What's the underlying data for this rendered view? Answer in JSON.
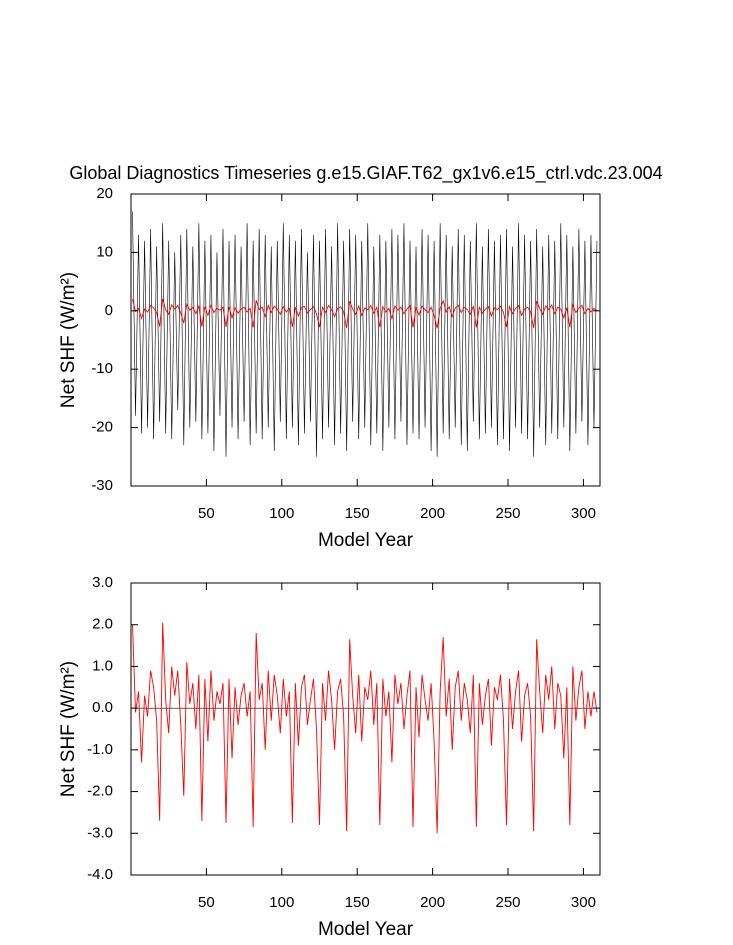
{
  "chart_data": [
    {
      "type": "line",
      "title": "Global Diagnostics Timeseries g.e15.GIAF.T62_gx1v6.e15_ctrl.vdc.23.004",
      "x_label": "Model Year",
      "y_label": "Net SHF (W/m²)",
      "xlim": [
        0,
        311
      ],
      "xticks": [
        50,
        100,
        150,
        200,
        250,
        300
      ],
      "ylim": [
        -30,
        20
      ],
      "yticks": [
        -30,
        -20,
        -10,
        0,
        10,
        20
      ],
      "series": [
        {
          "color": "#000000",
          "x": [
            1,
            3,
            5,
            7,
            9,
            11,
            13,
            15,
            17,
            19,
            21,
            23,
            25,
            27,
            29,
            31,
            33,
            35,
            37,
            39,
            41,
            43,
            45,
            47,
            49,
            51,
            53,
            55,
            57,
            59,
            61,
            63,
            65,
            67,
            69,
            71,
            73,
            75,
            77,
            79,
            81,
            83,
            85,
            87,
            89,
            91,
            93,
            95,
            97,
            99,
            101,
            103,
            105,
            107,
            109,
            111,
            113,
            115,
            117,
            119,
            121,
            123,
            125,
            127,
            129,
            131,
            133,
            135,
            137,
            139,
            141,
            143,
            145,
            147,
            149,
            151,
            153,
            155,
            157,
            159,
            161,
            163,
            165,
            167,
            169,
            171,
            173,
            175,
            177,
            179,
            181,
            183,
            185,
            187,
            189,
            191,
            193,
            195,
            197,
            199,
            201,
            203,
            205,
            207,
            209,
            211,
            213,
            215,
            217,
            219,
            221,
            223,
            225,
            227,
            229,
            231,
            233,
            235,
            237,
            239,
            241,
            243,
            245,
            247,
            249,
            251,
            253,
            255,
            257,
            259,
            261,
            263,
            265,
            267,
            269,
            271,
            273,
            275,
            277,
            279,
            281,
            283,
            285,
            287,
            289,
            291,
            293,
            295,
            297,
            299,
            301,
            303,
            305,
            307,
            309
          ],
          "values": [
            17,
            -18,
            13,
            -21,
            12,
            -20,
            14,
            -22,
            11,
            -19,
            15,
            -21,
            12,
            -22,
            10,
            -17,
            13,
            -23,
            14,
            -20,
            11,
            -19,
            15,
            -22,
            12,
            -21,
            13,
            -24,
            10,
            -18,
            14,
            -25,
            12,
            -20,
            13,
            -22,
            11,
            -19,
            15,
            -23,
            12,
            -21,
            14,
            -22,
            13,
            -20,
            11,
            -24,
            12,
            -19,
            15,
            -22,
            13,
            -20,
            12,
            -23,
            14,
            -21,
            10,
            -19,
            13,
            -25,
            12,
            -22,
            14,
            -20,
            11,
            -23,
            15,
            -21,
            12,
            -24,
            14,
            -19,
            13,
            -22,
            12,
            -20,
            15,
            -23,
            11,
            -21,
            13,
            -24,
            12,
            -20,
            14,
            -22,
            13,
            -19,
            15,
            -23,
            12,
            -21,
            11,
            -22,
            14,
            -20,
            13,
            -24,
            12,
            -25,
            15,
            -21,
            13,
            -22,
            11,
            -20,
            14,
            -23,
            13,
            -24,
            12,
            -19,
            15,
            -22,
            11,
            -21,
            14,
            -20,
            12,
            -23,
            13,
            -22,
            14,
            -24,
            11,
            -20,
            15,
            -21,
            13,
            -22,
            12,
            -25,
            14,
            -20,
            11,
            -23,
            13,
            -21,
            12,
            -22,
            15,
            -20,
            13,
            -24,
            11,
            -21,
            14,
            -19,
            12,
            -23,
            13,
            -20,
            12
          ]
        },
        {
          "color": "#ff0000",
          "x": [
            1,
            3,
            5,
            7,
            9,
            11,
            13,
            15,
            17,
            19,
            21,
            23,
            25,
            27,
            29,
            31,
            33,
            35,
            37,
            39,
            41,
            43,
            45,
            47,
            49,
            51,
            53,
            55,
            57,
            59,
            61,
            63,
            65,
            67,
            69,
            71,
            73,
            75,
            77,
            79,
            81,
            83,
            85,
            87,
            89,
            91,
            93,
            95,
            97,
            99,
            101,
            103,
            105,
            107,
            109,
            111,
            113,
            115,
            117,
            119,
            121,
            123,
            125,
            127,
            129,
            131,
            133,
            135,
            137,
            139,
            141,
            143,
            145,
            147,
            149,
            151,
            153,
            155,
            157,
            159,
            161,
            163,
            165,
            167,
            169,
            171,
            173,
            175,
            177,
            179,
            181,
            183,
            185,
            187,
            189,
            191,
            193,
            195,
            197,
            199,
            201,
            203,
            205,
            207,
            209,
            211,
            213,
            215,
            217,
            219,
            221,
            223,
            225,
            227,
            229,
            231,
            233,
            235,
            237,
            239,
            241,
            243,
            245,
            247,
            249,
            251,
            253,
            255,
            257,
            259,
            261,
            263,
            265,
            267,
            269,
            271,
            273,
            275,
            277,
            279,
            281,
            283,
            285,
            287,
            289,
            291,
            293,
            295,
            297,
            299,
            301,
            303,
            305,
            307,
            309
          ],
          "values": [
            2.0,
            -0.1,
            0.4,
            -1.3,
            0.3,
            -0.2,
            0.9,
            0.5,
            -0.3,
            -2.7,
            2.05,
            0.2,
            -0.6,
            1.0,
            0.3,
            0.9,
            -0.4,
            -2.1,
            1.1,
            0.1,
            0.6,
            -0.5,
            0.8,
            -2.7,
            0.7,
            -0.8,
            0.9,
            -0.3,
            0.4,
            0.1,
            0.6,
            -2.75,
            0.7,
            -1.2,
            0.5,
            -0.4,
            0.3,
            0.6,
            -0.2,
            0.4,
            -2.85,
            1.8,
            0.2,
            0.6,
            -1.0,
            0.9,
            -0.3,
            0.8,
            0.3,
            -0.6,
            0.7,
            -0.2,
            0.4,
            -2.75,
            0.6,
            -0.9,
            0.5,
            0.8,
            -0.4,
            0.2,
            0.7,
            -0.5,
            -2.8,
            0.6,
            -0.3,
            0.9,
            0.2,
            -1.0,
            0.4,
            0.7,
            -0.2,
            -2.95,
            1.65,
            0.3,
            -0.6,
            0.8,
            -0.8,
            0.5,
            0.2,
            0.9,
            -0.4,
            0.6,
            -2.8,
            0.7,
            -0.2,
            0.4,
            -1.3,
            0.8,
            0.1,
            0.6,
            -0.5,
            0.3,
            0.9,
            -2.85,
            0.5,
            -0.7,
            0.8,
            0.2,
            -0.3,
            0.6,
            -0.8,
            -3.0,
            0.4,
            1.7,
            -0.2,
            0.7,
            -1.0,
            0.5,
            0.9,
            -0.3,
            0.6,
            0.2,
            -0.6,
            0.8,
            -2.85,
            0.6,
            -0.4,
            0.3,
            0.7,
            -0.9,
            0.5,
            0.2,
            0.8,
            -0.3,
            -2.8,
            0.7,
            -0.5,
            0.4,
            0.9,
            -0.8,
            0.3,
            0.6,
            -0.2,
            -2.95,
            1.65,
            0.4,
            -0.6,
            0.8,
            0.2,
            1.0,
            -0.5,
            0.6,
            0.3,
            -1.2,
            0.5,
            -2.8,
            1.0,
            -0.3,
            0.5,
            0.9,
            -0.5,
            0.4,
            -0.2,
            0.4,
            -0.1
          ]
        }
      ]
    },
    {
      "type": "line",
      "x_label": "Model Year",
      "y_label": "Net SHF (W/m²)",
      "xlim": [
        0,
        311
      ],
      "xticks": [
        50,
        100,
        150,
        200,
        250,
        300
      ],
      "ylim": [
        -4,
        3
      ],
      "yticks": [
        {
          "value": -4,
          "label": "-4.0"
        },
        {
          "value": -3,
          "label": "-3.0"
        },
        {
          "value": -2,
          "label": "-2.0"
        },
        {
          "value": -1,
          "label": "-1.0"
        },
        {
          "value": 0,
          "label": "0.0"
        },
        {
          "value": 1,
          "label": "1.0"
        },
        {
          "value": 2,
          "label": "2.0"
        },
        {
          "value": 3,
          "label": "3.0"
        }
      ],
      "reference_line": 0,
      "series": [
        {
          "color": "#ff0000",
          "x": [
            1,
            3,
            5,
            7,
            9,
            11,
            13,
            15,
            17,
            19,
            21,
            23,
            25,
            27,
            29,
            31,
            33,
            35,
            37,
            39,
            41,
            43,
            45,
            47,
            49,
            51,
            53,
            55,
            57,
            59,
            61,
            63,
            65,
            67,
            69,
            71,
            73,
            75,
            77,
            79,
            81,
            83,
            85,
            87,
            89,
            91,
            93,
            95,
            97,
            99,
            101,
            103,
            105,
            107,
            109,
            111,
            113,
            115,
            117,
            119,
            121,
            123,
            125,
            127,
            129,
            131,
            133,
            135,
            137,
            139,
            141,
            143,
            145,
            147,
            149,
            151,
            153,
            155,
            157,
            159,
            161,
            163,
            165,
            167,
            169,
            171,
            173,
            175,
            177,
            179,
            181,
            183,
            185,
            187,
            189,
            191,
            193,
            195,
            197,
            199,
            201,
            203,
            205,
            207,
            209,
            211,
            213,
            215,
            217,
            219,
            221,
            223,
            225,
            227,
            229,
            231,
            233,
            235,
            237,
            239,
            241,
            243,
            245,
            247,
            249,
            251,
            253,
            255,
            257,
            259,
            261,
            263,
            265,
            267,
            269,
            271,
            273,
            275,
            277,
            279,
            281,
            283,
            285,
            287,
            289,
            291,
            293,
            295,
            297,
            299,
            301,
            303,
            305,
            307,
            309
          ],
          "values": [
            2.0,
            -0.1,
            0.4,
            -1.3,
            0.3,
            -0.2,
            0.9,
            0.5,
            -0.3,
            -2.7,
            2.05,
            0.2,
            -0.6,
            1.0,
            0.3,
            0.9,
            -0.4,
            -2.1,
            1.1,
            0.1,
            0.6,
            -0.5,
            0.8,
            -2.7,
            0.7,
            -0.8,
            0.9,
            -0.3,
            0.4,
            0.1,
            0.6,
            -2.75,
            0.7,
            -1.2,
            0.5,
            -0.4,
            0.3,
            0.6,
            -0.2,
            0.4,
            -2.85,
            1.8,
            0.2,
            0.6,
            -1.0,
            0.9,
            -0.3,
            0.8,
            0.3,
            -0.6,
            0.7,
            -0.2,
            0.4,
            -2.75,
            0.6,
            -0.9,
            0.5,
            0.8,
            -0.4,
            0.2,
            0.7,
            -0.5,
            -2.8,
            0.6,
            -0.3,
            0.9,
            0.2,
            -1.0,
            0.4,
            0.7,
            -0.2,
            -2.95,
            1.65,
            0.3,
            -0.6,
            0.8,
            -0.8,
            0.5,
            0.2,
            0.9,
            -0.4,
            0.6,
            -2.8,
            0.7,
            -0.2,
            0.4,
            -1.3,
            0.8,
            0.1,
            0.6,
            -0.5,
            0.3,
            0.9,
            -2.85,
            0.5,
            -0.7,
            0.8,
            0.2,
            -0.3,
            0.6,
            -0.8,
            -3.0,
            0.4,
            1.7,
            -0.2,
            0.7,
            -1.0,
            0.5,
            0.9,
            -0.3,
            0.6,
            0.2,
            -0.6,
            0.8,
            -2.85,
            0.6,
            -0.4,
            0.3,
            0.7,
            -0.9,
            0.5,
            0.2,
            0.8,
            -0.3,
            -2.8,
            0.7,
            -0.5,
            0.4,
            0.9,
            -0.8,
            0.3,
            0.6,
            -0.2,
            -2.95,
            1.65,
            0.4,
            -0.6,
            0.8,
            0.2,
            1.0,
            -0.5,
            0.6,
            0.3,
            -1.2,
            0.5,
            -2.8,
            1.0,
            -0.3,
            0.5,
            0.9,
            -0.5,
            0.4,
            -0.2,
            0.4,
            -0.1
          ]
        }
      ]
    }
  ]
}
